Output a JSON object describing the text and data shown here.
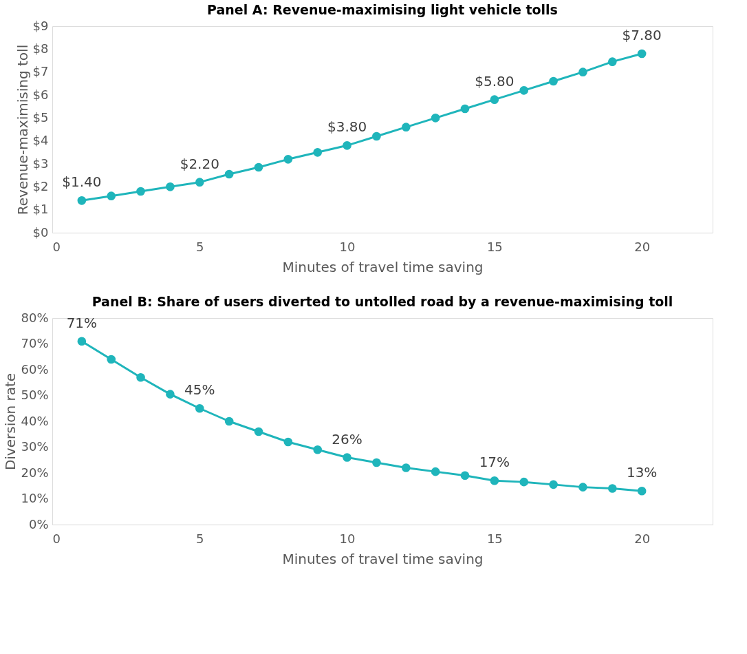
{
  "chart_data": [
    {
      "type": "line",
      "title": "Panel A: Revenue-maximising light vehicle tolls",
      "xlabel": "Minutes of travel time saving",
      "ylabel": "Revenue-maximising toll",
      "x": [
        1,
        2,
        3,
        4,
        5,
        6,
        7,
        8,
        9,
        10,
        11,
        12,
        13,
        14,
        15,
        16,
        17,
        18,
        19,
        20
      ],
      "series": [
        {
          "color": "#1fb5bb",
          "values": [
            1.4,
            1.6,
            1.8,
            2.0,
            2.2,
            2.55,
            2.85,
            3.2,
            3.5,
            3.8,
            4.2,
            4.6,
            5.0,
            5.4,
            5.8,
            6.2,
            6.6,
            7.0,
            7.45,
            7.8
          ],
          "value_labels": [
            "$1.40",
            null,
            null,
            null,
            "$2.20",
            null,
            null,
            null,
            null,
            "$3.80",
            null,
            null,
            null,
            null,
            "$5.80",
            null,
            null,
            null,
            null,
            "$7.80"
          ]
        }
      ],
      "xlim": [
        0,
        22.4
      ],
      "xticks": [
        0,
        5,
        10,
        15,
        20
      ],
      "ylim": [
        0,
        9
      ],
      "yticks": [
        {
          "value": 0,
          "label": "$0"
        },
        {
          "value": 1,
          "label": "$1"
        },
        {
          "value": 2,
          "label": "$2"
        },
        {
          "value": 3,
          "label": "$3"
        },
        {
          "value": 4,
          "label": "$4"
        },
        {
          "value": 5,
          "label": "$5"
        },
        {
          "value": 6,
          "label": "$6"
        },
        {
          "value": 7,
          "label": "$7"
        },
        {
          "value": 8,
          "label": "$8"
        },
        {
          "value": 9,
          "label": "$9"
        }
      ],
      "grid": false,
      "marker": "circle",
      "line_style": "solid"
    },
    {
      "type": "line",
      "title": "Panel B: Share of users diverted to untolled road by a revenue-maximising toll",
      "xlabel": "Minutes of travel time saving",
      "ylabel": "Diversion rate",
      "x": [
        1,
        2,
        3,
        4,
        5,
        6,
        7,
        8,
        9,
        10,
        11,
        12,
        13,
        14,
        15,
        16,
        17,
        18,
        19,
        20
      ],
      "series": [
        {
          "color": "#1fb5bb",
          "values": [
            71,
            64,
            57,
            50.5,
            45,
            40,
            36,
            32,
            29,
            26,
            24,
            22,
            20.5,
            19,
            17,
            16.5,
            15.5,
            14.5,
            14,
            13
          ],
          "value_labels": [
            "71%",
            null,
            null,
            null,
            "45%",
            null,
            null,
            null,
            null,
            "26%",
            null,
            null,
            null,
            null,
            "17%",
            null,
            null,
            null,
            null,
            "13%"
          ]
        }
      ],
      "xlim": [
        0,
        22.4
      ],
      "xticks": [
        0,
        5,
        10,
        15,
        20
      ],
      "ylim": [
        0,
        80
      ],
      "yticks": [
        {
          "value": 0,
          "label": "0%"
        },
        {
          "value": 10,
          "label": "10%"
        },
        {
          "value": 20,
          "label": "20%"
        },
        {
          "value": 30,
          "label": "30%"
        },
        {
          "value": 40,
          "label": "40%"
        },
        {
          "value": 50,
          "label": "50%"
        },
        {
          "value": 60,
          "label": "60%"
        },
        {
          "value": 70,
          "label": "70%"
        },
        {
          "value": 80,
          "label": "80%"
        }
      ],
      "grid": false,
      "marker": "circle",
      "line_style": "solid"
    }
  ]
}
